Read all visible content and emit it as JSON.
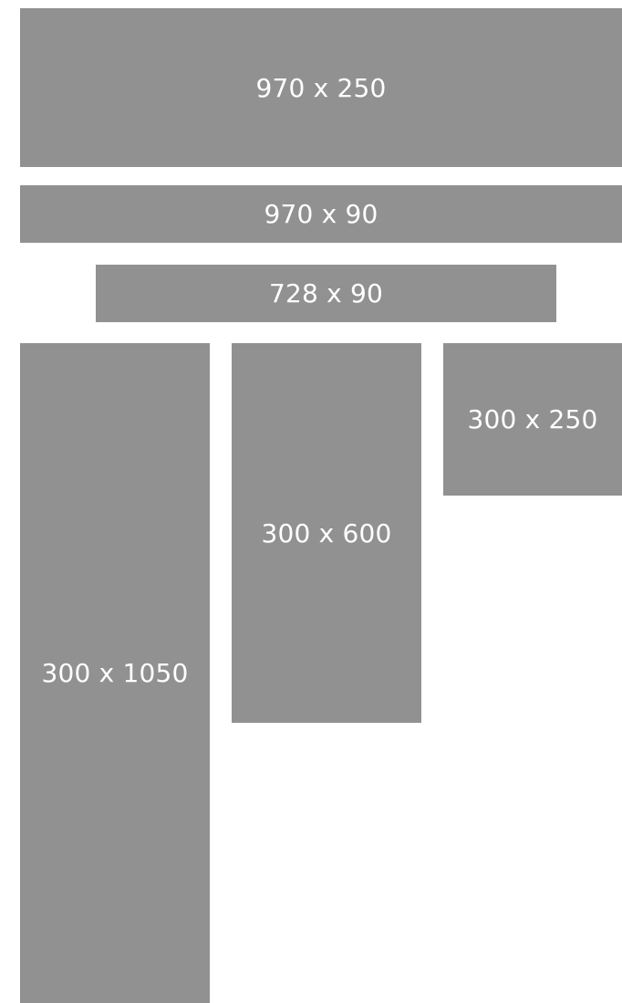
{
  "ad_slots": [
    {
      "label": "970 x 250"
    },
    {
      "label": "970 x 90"
    },
    {
      "label": "728 x 90"
    },
    {
      "label": "300 x 1050"
    },
    {
      "label": "300 x 600"
    },
    {
      "label": "300 x 250"
    }
  ],
  "colors": {
    "placeholder_fill": "#919191",
    "label_text": "#ffffff",
    "background": "#ffffff"
  }
}
